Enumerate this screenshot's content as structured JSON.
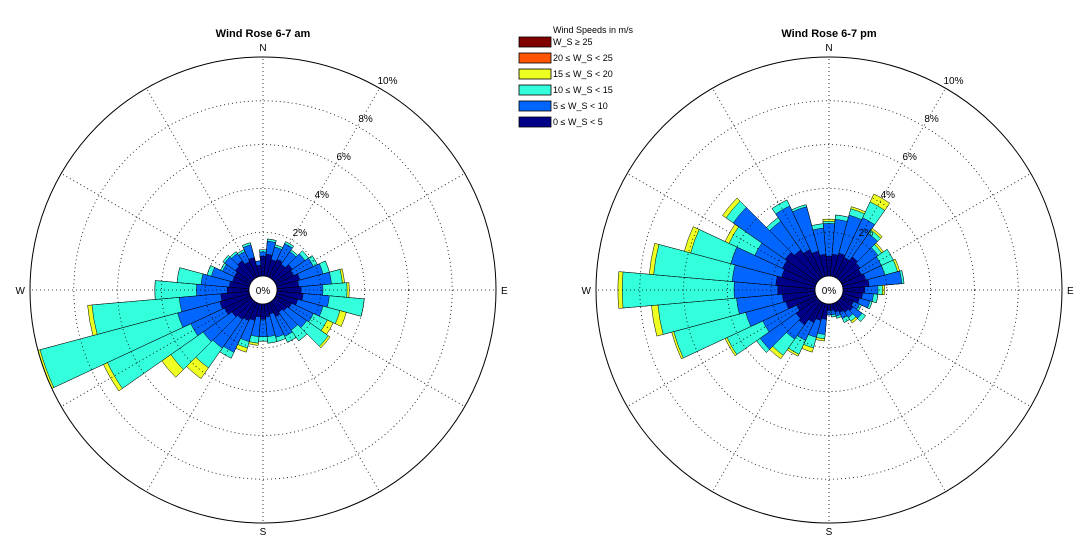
{
  "legend": {
    "title": "Wind Speeds in m/s",
    "bins": [
      {
        "label": "W_S ≥ 25",
        "color": "#800000"
      },
      {
        "label": "20 ≤ W_S < 25",
        "color": "#ff5500"
      },
      {
        "label": "15 ≤ W_S < 20",
        "color": "#eeff22"
      },
      {
        "label": "10 ≤ W_S < 15",
        "color": "#33ffdd"
      },
      {
        "label": "5 ≤ W_S < 10",
        "color": "#0066ff"
      },
      {
        "label": "0 ≤ W_S < 5",
        "color": "#000088"
      }
    ]
  },
  "chart_data": [
    {
      "type": "wind-rose",
      "title": "Wind Rose 6-7 am",
      "directions": [
        "N",
        "E",
        "S",
        "W"
      ],
      "radial_ticks": [
        "2%",
        "4%",
        "6%",
        "8%",
        "10%"
      ],
      "radial_max": 10,
      "center_label": "0%",
      "sector_count": 36,
      "sector_angles_deg": [
        0,
        10,
        20,
        30,
        40,
        50,
        60,
        70,
        80,
        90,
        100,
        110,
        120,
        130,
        140,
        150,
        160,
        170,
        180,
        190,
        200,
        210,
        220,
        230,
        240,
        250,
        260,
        270,
        280,
        290,
        300,
        310,
        320,
        330,
        340,
        350
      ],
      "series_order": [
        "0-5",
        "5-10",
        "10-15",
        "15-20",
        "20-25",
        ">=25"
      ],
      "cumulative_percent": [
        [
          0.9,
          1.1,
          1.2,
          1.2,
          0,
          0
        ],
        [
          1.0,
          1.6,
          1.7,
          1.7,
          0,
          0
        ],
        [
          0.8,
          1.4,
          1.5,
          1.5,
          0,
          0
        ],
        [
          0.9,
          1.7,
          1.8,
          1.8,
          0,
          0
        ],
        [
          0.8,
          1.5,
          1.6,
          1.6,
          0,
          0
        ],
        [
          1.0,
          1.7,
          1.9,
          1.9,
          0,
          0
        ],
        [
          0.9,
          1.9,
          2.1,
          2.1,
          0,
          0
        ],
        [
          1.1,
          2.2,
          2.5,
          2.5,
          0,
          0
        ],
        [
          1.0,
          2.5,
          3.0,
          3.1,
          0,
          0
        ],
        [
          1.1,
          2.1,
          3.2,
          3.3,
          0,
          0
        ],
        [
          1.2,
          2.4,
          4.0,
          4.0,
          0,
          0
        ],
        [
          1.0,
          2.2,
          3.0,
          3.3,
          0,
          0
        ],
        [
          0.8,
          1.9,
          2.6,
          2.9,
          0,
          0
        ],
        [
          0.7,
          1.8,
          3.0,
          3.1,
          0,
          0
        ],
        [
          0.6,
          1.6,
          2.2,
          2.2,
          0,
          0
        ],
        [
          0.7,
          1.7,
          2.0,
          2.0,
          0,
          0
        ],
        [
          0.5,
          1.6,
          1.8,
          1.8,
          0,
          0
        ],
        [
          0.6,
          1.5,
          1.8,
          1.8,
          0,
          0
        ],
        [
          0.7,
          1.5,
          1.7,
          1.7,
          0,
          0
        ],
        [
          0.6,
          1.5,
          1.8,
          1.9,
          0,
          0
        ],
        [
          0.8,
          1.8,
          2.1,
          2.3,
          0,
          0
        ],
        [
          0.9,
          2.5,
          2.8,
          2.8,
          0,
          0
        ],
        [
          1.0,
          2.6,
          3.7,
          4.3,
          0,
          0
        ],
        [
          1.1,
          2.7,
          4.5,
          5.0,
          0,
          0
        ],
        [
          1.3,
          3.0,
          7.2,
          7.4,
          0,
          0
        ],
        [
          1.4,
          3.4,
          9.9,
          10.0,
          0,
          0
        ],
        [
          1.3,
          3.2,
          7.2,
          7.4,
          0,
          0
        ],
        [
          1.0,
          2.4,
          4.3,
          4.3,
          0,
          0
        ],
        [
          0.9,
          2.2,
          3.3,
          3.3,
          0,
          0
        ],
        [
          0.8,
          1.8,
          2.0,
          2.0,
          0,
          0
        ],
        [
          0.8,
          1.4,
          1.5,
          1.5,
          0,
          0
        ],
        [
          0.9,
          1.5,
          1.6,
          1.6,
          0,
          0
        ],
        [
          1.0,
          1.4,
          1.5,
          1.5,
          0,
          0
        ],
        [
          0.8,
          1.3,
          1.4,
          1.4,
          0,
          0
        ],
        [
          0.9,
          1.5,
          1.6,
          1.6,
          0,
          0
        ],
        [
          0.5,
          0.7,
          0.7,
          0.7,
          0,
          0
        ]
      ]
    },
    {
      "type": "wind-rose",
      "title": "Wind Rose 6-7 pm",
      "directions": [
        "N",
        "E",
        "S",
        "W"
      ],
      "radial_ticks": [
        "2%",
        "4%",
        "6%",
        "8%",
        "10%"
      ],
      "radial_max": 10,
      "center_label": "0%",
      "sector_count": 36,
      "sector_angles_deg": [
        0,
        10,
        20,
        30,
        40,
        50,
        60,
        70,
        80,
        90,
        100,
        110,
        120,
        130,
        140,
        150,
        160,
        170,
        180,
        190,
        200,
        210,
        220,
        230,
        240,
        250,
        260,
        270,
        280,
        290,
        300,
        310,
        320,
        330,
        340,
        350
      ],
      "series_order": [
        "0-5",
        "5-10",
        "10-15",
        "15-20",
        "20-25",
        ">=25"
      ],
      "cumulative_percent": [
        [
          0.9,
          2.4,
          2.5,
          2.6,
          0,
          0
        ],
        [
          1.0,
          2.6,
          2.8,
          2.8,
          0,
          0
        ],
        [
          1.1,
          2.9,
          3.2,
          3.3,
          0,
          0
        ],
        [
          1.0,
          3.0,
          3.8,
          4.2,
          0,
          0
        ],
        [
          1.2,
          2.5,
          2.7,
          2.8,
          0,
          0
        ],
        [
          1.1,
          2.1,
          2.3,
          2.4,
          0,
          0
        ],
        [
          1.0,
          2.0,
          2.6,
          2.6,
          0,
          0
        ],
        [
          1.1,
          2.0,
          2.6,
          2.7,
          0,
          0
        ],
        [
          1.2,
          2.7,
          2.8,
          2.8,
          0,
          0
        ],
        [
          1.0,
          1.6,
          1.8,
          1.9,
          0,
          0
        ],
        [
          0.9,
          1.4,
          1.6,
          1.6,
          0,
          0
        ],
        [
          0.8,
          1.3,
          1.4,
          1.4,
          0,
          0
        ],
        [
          0.6,
          0.9,
          1.0,
          1.0,
          0,
          0
        ],
        [
          0.7,
          1.2,
          1.4,
          1.4,
          0,
          0
        ],
        [
          0.6,
          0.9,
          1.1,
          1.2,
          0,
          0
        ],
        [
          0.5,
          0.8,
          1.0,
          1.0,
          0,
          0
        ],
        [
          0.4,
          0.6,
          0.7,
          0.7,
          0,
          0
        ],
        [
          0.3,
          0.5,
          0.6,
          0.6,
          0,
          0
        ],
        [
          0.3,
          0.5,
          0.5,
          0.5,
          0,
          0
        ],
        [
          0.7,
          1.4,
          1.6,
          1.7,
          0,
          0
        ],
        [
          0.8,
          1.6,
          2.1,
          2.3,
          0,
          0
        ],
        [
          1.0,
          1.9,
          2.6,
          2.7,
          0,
          0
        ],
        [
          1.3,
          2.1,
          3.0,
          3.2,
          0,
          0
        ],
        [
          1.2,
          3.2,
          3.4,
          3.4,
          0,
          0
        ],
        [
          1.0,
          2.7,
          4.5,
          4.6,
          0,
          0
        ],
        [
          1.4,
          3.3,
          6.7,
          6.8,
          0,
          0
        ],
        [
          1.5,
          3.6,
          7.2,
          7.5,
          0,
          0
        ],
        [
          1.7,
          3.7,
          8.8,
          9.0,
          0,
          0
        ],
        [
          1.8,
          3.8,
          7.4,
          7.6,
          0,
          0
        ],
        [
          1.6,
          4.0,
          5.9,
          6.2,
          0,
          0
        ],
        [
          1.7,
          3.1,
          4.4,
          4.6,
          0,
          0
        ],
        [
          1.8,
          4.7,
          5.1,
          5.3,
          0,
          0
        ],
        [
          1.6,
          3.2,
          3.4,
          3.4,
          0,
          0
        ],
        [
          1.4,
          3.6,
          3.9,
          3.9,
          0,
          0
        ],
        [
          1.2,
          3.3,
          3.4,
          3.4,
          0,
          0
        ],
        [
          1.0,
          2.2,
          2.4,
          2.4,
          0,
          0
        ]
      ]
    }
  ]
}
